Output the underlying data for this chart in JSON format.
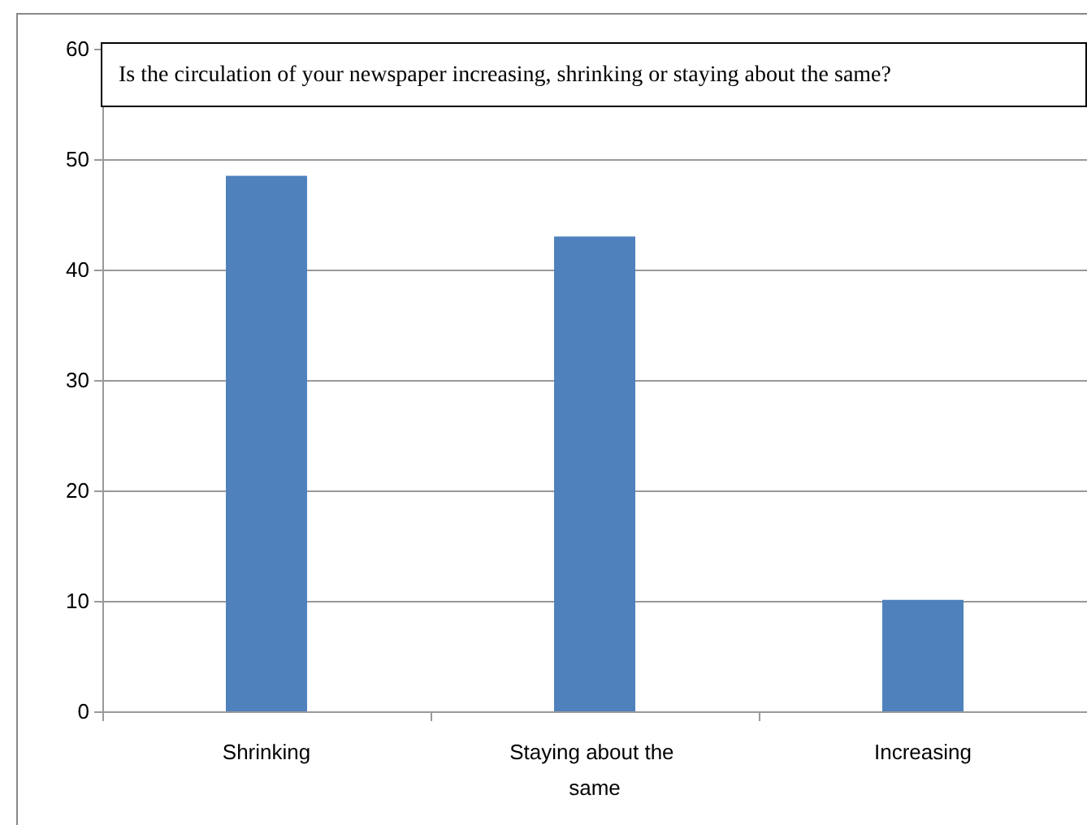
{
  "chart_data": {
    "type": "bar",
    "title": "Is the circulation of your newspaper increasing, shrinking or staying about the same?",
    "categories": [
      "Shrinking",
      "Staying about the same",
      "Increasing"
    ],
    "values": [
      48.5,
      43.0,
      10.1
    ],
    "color": "#4f81bd",
    "ylim": [
      0,
      60
    ],
    "yticks": [
      0,
      10,
      20,
      30,
      40,
      50,
      60
    ],
    "grid": "y"
  }
}
